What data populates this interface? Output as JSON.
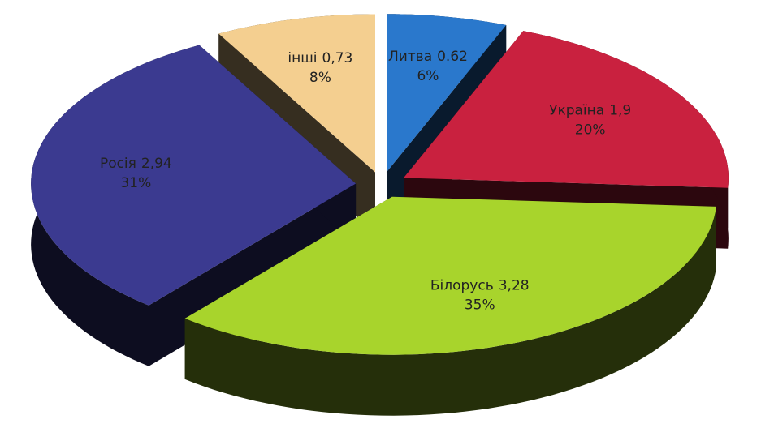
{
  "chart_data": {
    "type": "pie",
    "categories": [
      "Литва",
      "Україна",
      "Білорусь",
      "Росія",
      "інші"
    ],
    "values": [
      6,
      20,
      35,
      31,
      8
    ],
    "value_labels": [
      "6%",
      "20%",
      "35%",
      "31%",
      "8%"
    ],
    "amounts": [
      0.62,
      1.9,
      3.28,
      2.94,
      0.73
    ],
    "amount_labels": [
      "0.62",
      "1,9",
      "3,28",
      "2,94",
      "0,73"
    ],
    "colors": [
      "#2a78cc",
      "#c9213f",
      "#a8d42c",
      "#3b3a90",
      "#f4cf90"
    ]
  }
}
